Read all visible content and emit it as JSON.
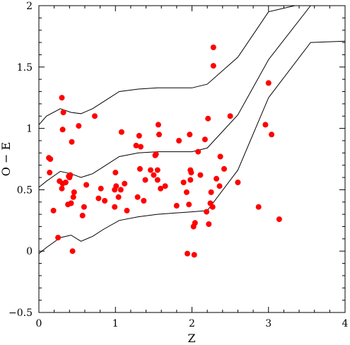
{
  "chart_data": {
    "type": "scatter",
    "xlabel": "Z",
    "ylabel": "O − E",
    "xlim": [
      0,
      4
    ],
    "ylim": [
      -0.5,
      2
    ],
    "grid": false,
    "legend": "none",
    "x_ticks": [
      "0",
      "1",
      "2",
      "3",
      "4"
    ],
    "x_tick_values": [
      0,
      1,
      2,
      3,
      4
    ],
    "y_ticks": [
      "−0.5",
      "0",
      "0.5",
      "1",
      "1.5",
      "2"
    ],
    "y_tick_values": [
      -0.5,
      0,
      0.5,
      1,
      1.5,
      2
    ],
    "point_color": "#ff0000",
    "line_color": "#000000",
    "points": [
      {
        "x": 0.13,
        "y": 0.76
      },
      {
        "x": 0.14,
        "y": 0.64
      },
      {
        "x": 0.15,
        "y": 0.75
      },
      {
        "x": 0.19,
        "y": 0.33
      },
      {
        "x": 0.25,
        "y": 0.11
      },
      {
        "x": 0.27,
        "y": 0.57
      },
      {
        "x": 0.3,
        "y": 1.25
      },
      {
        "x": 0.31,
        "y": 0.55
      },
      {
        "x": 0.31,
        "y": 0.99
      },
      {
        "x": 0.32,
        "y": 1.13
      },
      {
        "x": 0.3,
        "y": 0.51
      },
      {
        "x": 0.35,
        "y": 0.56
      },
      {
        "x": 0.38,
        "y": 0.38
      },
      {
        "x": 0.39,
        "y": 0.61
      },
      {
        "x": 0.4,
        "y": 0.6
      },
      {
        "x": 0.41,
        "y": 0.62
      },
      {
        "x": 0.42,
        "y": 0.39
      },
      {
        "x": 0.43,
        "y": 0.89
      },
      {
        "x": 0.44,
        "y": 0.0
      },
      {
        "x": 0.45,
        "y": 0.44
      },
      {
        "x": 0.46,
        "y": 0.48
      },
      {
        "x": 0.52,
        "y": 1.02
      },
      {
        "x": 0.57,
        "y": 0.29
      },
      {
        "x": 0.59,
        "y": 0.36
      },
      {
        "x": 0.62,
        "y": 0.54
      },
      {
        "x": 0.73,
        "y": 1.1
      },
      {
        "x": 0.78,
        "y": 0.43
      },
      {
        "x": 0.81,
        "y": 0.51
      },
      {
        "x": 0.86,
        "y": 0.41
      },
      {
        "x": 0.99,
        "y": 0.36
      },
      {
        "x": 0.99,
        "y": 0.5
      },
      {
        "x": 1.0,
        "y": 0.64
      },
      {
        "x": 1.01,
        "y": 0.53
      },
      {
        "x": 1.04,
        "y": 0.44
      },
      {
        "x": 1.07,
        "y": 0.5
      },
      {
        "x": 1.08,
        "y": 0.97
      },
      {
        "x": 1.12,
        "y": 0.55
      },
      {
        "x": 1.15,
        "y": 0.33
      },
      {
        "x": 1.27,
        "y": 0.86
      },
      {
        "x": 1.29,
        "y": 0.44
      },
      {
        "x": 1.31,
        "y": 0.94
      },
      {
        "x": 1.32,
        "y": 0.67
      },
      {
        "x": 1.33,
        "y": 0.85
      },
      {
        "x": 1.37,
        "y": 0.41
      },
      {
        "x": 1.39,
        "y": 0.58
      },
      {
        "x": 1.46,
        "y": 0.66
      },
      {
        "x": 1.5,
        "y": 0.62
      },
      {
        "x": 1.52,
        "y": 0.78
      },
      {
        "x": 1.53,
        "y": 0.79
      },
      {
        "x": 1.55,
        "y": 0.58
      },
      {
        "x": 1.56,
        "y": 1.03
      },
      {
        "x": 1.57,
        "y": 0.95
      },
      {
        "x": 1.59,
        "y": 0.51
      },
      {
        "x": 1.65,
        "y": 0.53
      },
      {
        "x": 1.55,
        "y": 0.66
      },
      {
        "x": 1.8,
        "y": 0.37
      },
      {
        "x": 1.83,
        "y": 0.9
      },
      {
        "x": 1.89,
        "y": 0.56
      },
      {
        "x": 1.93,
        "y": 0.48
      },
      {
        "x": 1.94,
        "y": -0.02
      },
      {
        "x": 1.96,
        "y": 0.38
      },
      {
        "x": 1.97,
        "y": 0.95
      },
      {
        "x": 1.98,
        "y": 0.66
      },
      {
        "x": 1.98,
        "y": 0.58
      },
      {
        "x": 1.99,
        "y": 0.64
      },
      {
        "x": 2.02,
        "y": 0.2
      },
      {
        "x": 2.03,
        "y": -0.03
      },
      {
        "x": 2.04,
        "y": 0.23
      },
      {
        "x": 2.08,
        "y": 0.81
      },
      {
        "x": 2.11,
        "y": 0.62
      },
      {
        "x": 2.17,
        "y": 0.91
      },
      {
        "x": 2.19,
        "y": 0.32
      },
      {
        "x": 2.21,
        "y": 1.08
      },
      {
        "x": 2.22,
        "y": 0.22
      },
      {
        "x": 2.24,
        "y": 0.39
      },
      {
        "x": 2.25,
        "y": 0.48
      },
      {
        "x": 2.27,
        "y": 0.36
      },
      {
        "x": 2.28,
        "y": 1.66
      },
      {
        "x": 2.28,
        "y": 1.51
      },
      {
        "x": 2.32,
        "y": 0.59
      },
      {
        "x": 2.36,
        "y": 0.53
      },
      {
        "x": 2.37,
        "y": 0.77
      },
      {
        "x": 2.42,
        "y": 0.67
      },
      {
        "x": 2.5,
        "y": 1.1
      },
      {
        "x": 2.6,
        "y": 0.56
      },
      {
        "x": 2.87,
        "y": 0.36
      },
      {
        "x": 2.96,
        "y": 1.03
      },
      {
        "x": 3.0,
        "y": 1.37
      },
      {
        "x": 3.04,
        "y": 0.95
      },
      {
        "x": 3.14,
        "y": 0.26
      }
    ],
    "series": [
      {
        "x": [
          0.0,
          0.1,
          0.28,
          0.42,
          0.55,
          0.7,
          0.85,
          1.05,
          1.3,
          1.55,
          2.0,
          2.2,
          2.6,
          3.0,
          3.55,
          4.0
        ],
        "y": [
          1.03,
          1.1,
          1.16,
          1.13,
          1.12,
          1.16,
          1.22,
          1.3,
          1.32,
          1.33,
          1.33,
          1.36,
          1.58,
          1.95,
          2.03,
          2.03
        ]
      },
      {
        "x": [
          0.0,
          0.1,
          0.28,
          0.42,
          0.55,
          0.7,
          0.85,
          1.05,
          1.3,
          1.55,
          2.0,
          2.2,
          2.6,
          3.0,
          3.55,
          3.62
        ],
        "y": [
          0.52,
          0.57,
          0.65,
          0.63,
          0.6,
          0.63,
          0.69,
          0.77,
          0.8,
          0.81,
          0.81,
          0.84,
          1.11,
          1.56,
          2.0,
          2.0
        ]
      },
      {
        "x": [
          0.0,
          0.1,
          0.28,
          0.42,
          0.55,
          0.7,
          0.85,
          1.05,
          1.3,
          1.55,
          2.0,
          2.2,
          2.6,
          3.0,
          3.55,
          4.0
        ],
        "y": [
          -0.02,
          0.03,
          0.11,
          0.13,
          0.08,
          0.12,
          0.18,
          0.25,
          0.28,
          0.3,
          0.32,
          0.33,
          0.66,
          1.25,
          1.7,
          1.71
        ]
      }
    ]
  }
}
